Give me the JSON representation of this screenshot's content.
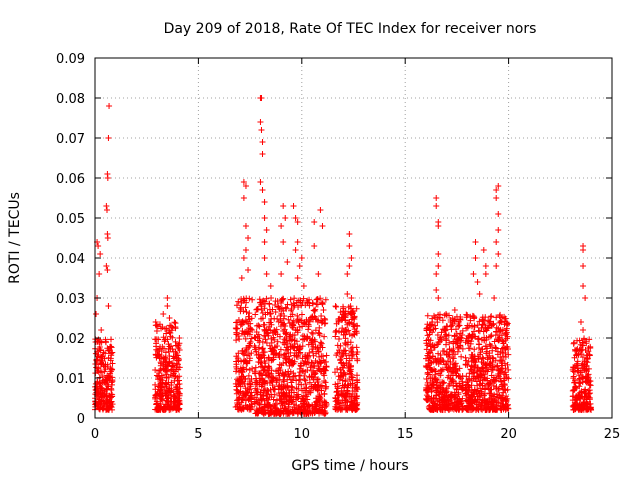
{
  "chart_data": {
    "type": "scatter",
    "title": "Day 209 of 2018, Rate Of TEC Index for receiver nors",
    "xlabel": "GPS time / hours",
    "ylabel": "ROTI / TECUs",
    "xlim": [
      0,
      25
    ],
    "ylim": [
      0,
      0.09
    ],
    "xticks": [
      0,
      5,
      10,
      15,
      20,
      25
    ],
    "yticks": [
      0,
      0.01,
      0.02,
      0.03,
      0.04,
      0.05,
      0.06,
      0.07,
      0.08,
      0.09
    ],
    "xtick_labels": [
      "0",
      "5",
      "10",
      "15",
      "20",
      "25"
    ],
    "ytick_labels": [
      "0",
      "0.01",
      "0.02",
      "0.03",
      "0.04",
      "0.05",
      "0.06",
      "0.07",
      "0.08",
      "0.09"
    ],
    "grid": true,
    "marker": "+",
    "color": "#ff0000",
    "clusters": [
      {
        "x": [
          0.0,
          0.85
        ],
        "y_dense": [
          0.002,
          0.02
        ],
        "outliers": [
          [
            0.1,
            0.044
          ],
          [
            0.15,
            0.043
          ],
          [
            0.2,
            0.036
          ],
          [
            0.25,
            0.041
          ],
          [
            0.1,
            0.03
          ],
          [
            0.05,
            0.026
          ],
          [
            0.6,
            0.061
          ],
          [
            0.62,
            0.06
          ],
          [
            0.65,
            0.07
          ],
          [
            0.68,
            0.078
          ],
          [
            0.55,
            0.053
          ],
          [
            0.58,
            0.052
          ],
          [
            0.6,
            0.046
          ],
          [
            0.62,
            0.045
          ],
          [
            0.55,
            0.038
          ],
          [
            0.6,
            0.037
          ],
          [
            0.65,
            0.028
          ],
          [
            0.3,
            0.022
          ]
        ]
      },
      {
        "x": [
          2.9,
          4.1
        ],
        "y_dense": [
          0.002,
          0.024
        ],
        "outliers": [
          [
            3.5,
            0.03
          ],
          [
            3.5,
            0.028
          ],
          [
            3.3,
            0.026
          ],
          [
            3.6,
            0.025
          ]
        ]
      },
      {
        "x": [
          6.8,
          7.6
        ],
        "y_dense": [
          0.002,
          0.03
        ],
        "outliers": [
          [
            7.2,
            0.059
          ],
          [
            7.3,
            0.058
          ],
          [
            7.2,
            0.055
          ],
          [
            7.3,
            0.048
          ],
          [
            7.4,
            0.045
          ],
          [
            7.3,
            0.042
          ],
          [
            7.2,
            0.04
          ],
          [
            7.4,
            0.037
          ],
          [
            7.1,
            0.035
          ]
        ]
      },
      {
        "x": [
          7.7,
          11.2
        ],
        "y_dense": [
          0.001,
          0.03
        ],
        "outliers": [
          [
            8.0,
            0.08
          ],
          [
            8.05,
            0.08
          ],
          [
            8.0,
            0.074
          ],
          [
            8.05,
            0.072
          ],
          [
            8.1,
            0.069
          ],
          [
            8.1,
            0.066
          ],
          [
            8.0,
            0.059
          ],
          [
            8.1,
            0.057
          ],
          [
            8.2,
            0.054
          ],
          [
            8.2,
            0.05
          ],
          [
            8.3,
            0.047
          ],
          [
            8.2,
            0.044
          ],
          [
            8.2,
            0.04
          ],
          [
            8.3,
            0.036
          ],
          [
            8.5,
            0.033
          ],
          [
            9.1,
            0.053
          ],
          [
            9.2,
            0.05
          ],
          [
            9.0,
            0.048
          ],
          [
            9.1,
            0.044
          ],
          [
            9.3,
            0.039
          ],
          [
            9.0,
            0.036
          ],
          [
            9.6,
            0.053
          ],
          [
            9.7,
            0.05
          ],
          [
            9.8,
            0.049
          ],
          [
            9.8,
            0.044
          ],
          [
            9.7,
            0.042
          ],
          [
            9.9,
            0.038
          ],
          [
            9.8,
            0.035
          ],
          [
            10.0,
            0.04
          ],
          [
            10.1,
            0.033
          ],
          [
            10.6,
            0.049
          ],
          [
            10.6,
            0.043
          ],
          [
            10.9,
            0.052
          ],
          [
            11.0,
            0.048
          ],
          [
            10.8,
            0.036
          ]
        ]
      },
      {
        "x": [
          11.6,
          12.7
        ],
        "y_dense": [
          0.002,
          0.028
        ],
        "outliers": [
          [
            12.3,
            0.046
          ],
          [
            12.3,
            0.043
          ],
          [
            12.4,
            0.04
          ],
          [
            12.3,
            0.038
          ],
          [
            12.2,
            0.036
          ],
          [
            12.2,
            0.031
          ],
          [
            12.4,
            0.03
          ]
        ]
      },
      {
        "x": [
          16.0,
          17.8
        ],
        "y_dense": [
          0.002,
          0.026
        ],
        "outliers": [
          [
            16.5,
            0.055
          ],
          [
            16.5,
            0.053
          ],
          [
            16.6,
            0.049
          ],
          [
            16.6,
            0.048
          ],
          [
            16.6,
            0.041
          ],
          [
            16.6,
            0.038
          ],
          [
            16.5,
            0.036
          ],
          [
            16.5,
            0.032
          ],
          [
            16.6,
            0.03
          ],
          [
            17.4,
            0.027
          ]
        ]
      },
      {
        "x": [
          17.9,
          20.0
        ],
        "y_dense": [
          0.002,
          0.026
        ],
        "outliers": [
          [
            18.4,
            0.044
          ],
          [
            18.4,
            0.04
          ],
          [
            18.3,
            0.036
          ],
          [
            18.8,
            0.042
          ],
          [
            18.9,
            0.038
          ],
          [
            18.9,
            0.036
          ],
          [
            18.5,
            0.034
          ],
          [
            18.6,
            0.031
          ],
          [
            19.4,
            0.057
          ],
          [
            19.5,
            0.058
          ],
          [
            19.4,
            0.055
          ],
          [
            19.5,
            0.051
          ],
          [
            19.5,
            0.047
          ],
          [
            19.4,
            0.044
          ],
          [
            19.5,
            0.041
          ],
          [
            19.4,
            0.038
          ],
          [
            19.3,
            0.03
          ]
        ]
      },
      {
        "x": [
          23.1,
          24.0
        ],
        "y_dense": [
          0.002,
          0.02
        ],
        "outliers": [
          [
            23.6,
            0.043
          ],
          [
            23.6,
            0.042
          ],
          [
            23.6,
            0.038
          ],
          [
            23.6,
            0.033
          ],
          [
            23.7,
            0.03
          ],
          [
            23.5,
            0.024
          ],
          [
            23.6,
            0.022
          ]
        ]
      }
    ]
  }
}
